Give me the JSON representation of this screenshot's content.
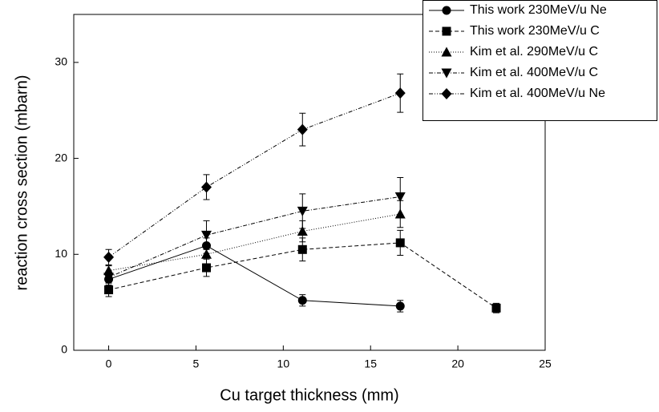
{
  "chart_data": {
    "type": "line",
    "x_label": "Cu target thickness (mm)",
    "y_label": "reaction cross section (mbarn)",
    "xlim": [
      -2,
      25
    ],
    "xticks": [
      0,
      5,
      10,
      15,
      20,
      25
    ],
    "ylim": [
      0,
      35
    ],
    "yticks": [
      0,
      10,
      20,
      30
    ],
    "legend": "upper right",
    "series": [
      {
        "name": "This work 230MeV/u Ne",
        "color": "#000000",
        "marker": "circle",
        "line_style": "solid",
        "x": [
          0,
          5.6,
          11.1,
          16.7
        ],
        "values": [
          7.4,
          10.9,
          5.2,
          4.6
        ],
        "errors": [
          0.6,
          0.8,
          0.6,
          0.6
        ]
      },
      {
        "name": "This work 230MeV/u C",
        "color": "#000000",
        "marker": "square",
        "line_style": "dashed",
        "x": [
          0,
          5.6,
          11.1,
          16.7,
          22.2
        ],
        "values": [
          6.3,
          8.6,
          10.5,
          11.2,
          4.4
        ],
        "errors": [
          0.7,
          0.9,
          1.2,
          1.3,
          0.5
        ]
      },
      {
        "name": "Kim et al. 290MeV/u C",
        "color": "#000000",
        "marker": "triangle-up",
        "line_style": "dotted",
        "x": [
          0,
          5.6,
          11.1,
          16.7
        ],
        "values": [
          8.3,
          10.0,
          12.4,
          14.2
        ],
        "errors": [
          0.5,
          1.0,
          1.1,
          1.4
        ]
      },
      {
        "name": "Kim et al. 400MeV/u C",
        "color": "#000000",
        "marker": "triangle-down",
        "line_style": "dashdot",
        "x": [
          0,
          5.6,
          11.1,
          16.7
        ],
        "values": [
          7.6,
          12.0,
          14.5,
          16.0
        ],
        "errors": [
          0.5,
          1.5,
          1.8,
          2.0
        ]
      },
      {
        "name": "Kim et al. 400MeV/u Ne",
        "color": "#000000",
        "marker": "diamond",
        "line_style": "dashdotdot",
        "x": [
          0,
          5.6,
          11.1,
          16.7
        ],
        "values": [
          9.7,
          17.0,
          23.0,
          26.8
        ],
        "errors": [
          0.8,
          1.3,
          1.7,
          2.0
        ]
      }
    ]
  }
}
